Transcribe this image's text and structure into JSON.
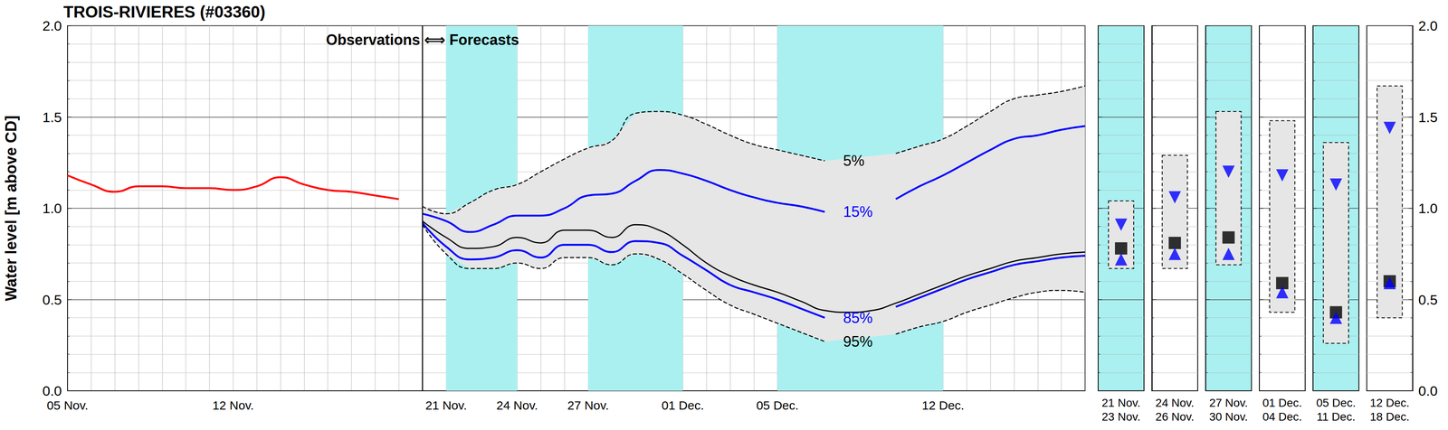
{
  "chart_data": {
    "type": "line",
    "title": "TROIS-RIVIERES (#03360)",
    "y_label": "Water level [m above CD]",
    "annotation": "Observations ⟺ Forecasts",
    "categories": [
      "05 Nov.",
      null,
      null,
      null,
      null,
      null,
      null,
      "12 Nov.",
      null,
      null,
      null,
      null,
      null,
      null,
      null,
      null,
      "21 Nov.",
      null,
      null,
      "24 Nov.",
      null,
      null,
      "27 Nov.",
      null,
      null,
      null,
      "01 Dec.",
      null,
      null,
      null,
      "05 Dec.",
      null,
      null,
      null,
      null,
      null,
      null,
      "12 Dec.",
      null,
      null,
      null,
      null,
      null,
      null
    ],
    "ylim": [
      0,
      2
    ],
    "yticks": [
      {
        "value": 0,
        "label": "0.0"
      },
      0.5,
      {
        "value": 1,
        "label": "1.0"
      },
      1.5,
      {
        "value": 2,
        "label": "2.0"
      }
    ],
    "grid": true,
    "shaded": {
      "color": "#aaf0f0",
      "ranges": [
        [
          "21 Nov.",
          "24 Nov."
        ],
        [
          "27 Nov.",
          "01 Dec."
        ],
        [
          "05 Dec.",
          "12 Dec."
        ]
      ]
    },
    "series": [
      {
        "color": "#ff0000",
        "line_style": "solid",
        "values": [
          1.18,
          1.13,
          1.09,
          1.12,
          1.12,
          1.11,
          1.11,
          1.1,
          1.12,
          1.17,
          1.13,
          1.1,
          1.09,
          1.07,
          1.05,
          null,
          null,
          null,
          null,
          null,
          null,
          null,
          null,
          null,
          null,
          null,
          null,
          null,
          null,
          null,
          null,
          null,
          null,
          null,
          null,
          null,
          null,
          null,
          null,
          null,
          null,
          null,
          null,
          null
        ]
      },
      {
        "name": "5%",
        "color": "#000000",
        "line_style": "dashed",
        "values": [
          null,
          null,
          null,
          null,
          null,
          null,
          null,
          null,
          null,
          null,
          null,
          null,
          null,
          null,
          null,
          1.01,
          0.97,
          1.03,
          1.1,
          1.13,
          1.2,
          1.27,
          1.33,
          1.37,
          1.52,
          1.53,
          1.51,
          1.46,
          1.4,
          1.35,
          1.32,
          1.29,
          1.26,
          null,
          null,
          1.3,
          1.34,
          1.38,
          1.45,
          1.53,
          1.6,
          1.62,
          1.64,
          1.67
        ]
      },
      {
        "name": "15%",
        "color": "#0000ff",
        "line_style": "solid",
        "values": [
          null,
          null,
          null,
          null,
          null,
          null,
          null,
          null,
          null,
          null,
          null,
          null,
          null,
          null,
          null,
          0.97,
          0.93,
          0.87,
          0.91,
          0.96,
          0.96,
          1.0,
          1.07,
          1.08,
          1.15,
          1.21,
          1.19,
          1.15,
          1.1,
          1.06,
          1.03,
          1.01,
          0.98,
          null,
          null,
          1.05,
          1.12,
          1.18,
          1.25,
          1.32,
          1.38,
          1.4,
          1.43,
          1.45
        ]
      },
      {
        "color": "#000000",
        "line_style": "solid",
        "values": [
          null,
          null,
          null,
          null,
          null,
          null,
          null,
          null,
          null,
          null,
          null,
          null,
          null,
          null,
          null,
          0.93,
          0.84,
          0.78,
          0.79,
          0.84,
          0.81,
          0.88,
          0.88,
          0.84,
          0.91,
          0.88,
          0.8,
          0.7,
          0.63,
          0.58,
          0.54,
          0.49,
          0.44,
          0.43,
          0.44,
          0.48,
          0.53,
          0.58,
          0.63,
          0.67,
          0.71,
          0.73,
          0.75,
          0.76
        ]
      },
      {
        "name": "85%",
        "color": "#0000ff",
        "line_style": "solid",
        "values": [
          null,
          null,
          null,
          null,
          null,
          null,
          null,
          null,
          null,
          null,
          null,
          null,
          null,
          null,
          null,
          0.92,
          0.79,
          0.72,
          0.73,
          0.77,
          0.73,
          0.8,
          0.8,
          0.76,
          0.82,
          0.81,
          0.74,
          0.66,
          0.58,
          0.54,
          0.5,
          0.45,
          0.4,
          null,
          null,
          0.46,
          0.51,
          0.56,
          0.61,
          0.65,
          0.69,
          0.71,
          0.73,
          0.74
        ]
      },
      {
        "name": "95%",
        "color": "#000000",
        "line_style": "dashed",
        "values": [
          null,
          null,
          null,
          null,
          null,
          null,
          null,
          null,
          null,
          null,
          null,
          null,
          null,
          null,
          null,
          0.91,
          0.75,
          0.67,
          0.67,
          0.7,
          0.67,
          0.73,
          0.73,
          0.69,
          0.75,
          0.72,
          0.64,
          0.55,
          0.47,
          0.42,
          0.37,
          0.32,
          0.27,
          null,
          null,
          0.31,
          0.35,
          0.38,
          0.43,
          0.47,
          0.51,
          0.54,
          0.55,
          0.54
        ]
      }
    ],
    "panel_markers": [
      {
        "marker": "triangle-down",
        "color": "#0000ff"
      },
      {
        "marker": "square",
        "color": "#000000"
      },
      {
        "marker": "triangle-up",
        "color": "#0000ff"
      }
    ],
    "panels": [
      {
        "label": [
          "21 Nov.",
          "23 Nov."
        ],
        "color": "#aaf0f0",
        "range": [
          0.67,
          1.04
        ],
        "markers": [
          0.91,
          0.78,
          0.72
        ]
      },
      {
        "label": [
          "24 Nov.",
          "26 Nov."
        ],
        "color": "#ffffff",
        "range": [
          0.67,
          1.29
        ],
        "markers": [
          1.06,
          0.81,
          0.75
        ]
      },
      {
        "label": [
          "27 Nov.",
          "30 Nov."
        ],
        "color": "#aaf0f0",
        "range": [
          0.69,
          1.53
        ],
        "markers": [
          1.2,
          0.84,
          0.75
        ]
      },
      {
        "label": [
          "01 Dec.",
          "04 Dec."
        ],
        "color": "#ffffff",
        "range": [
          0.43,
          1.48
        ],
        "markers": [
          1.18,
          0.59,
          0.54
        ]
      },
      {
        "label": [
          "05 Dec.",
          "11 Dec."
        ],
        "color": "#aaf0f0",
        "range": [
          0.26,
          1.36
        ],
        "markers": [
          1.13,
          0.43,
          0.4
        ]
      },
      {
        "label": [
          "12 Dec.",
          "18 Dec."
        ],
        "color": "#ffffff",
        "range": [
          0.4,
          1.67
        ],
        "markers": [
          1.44,
          0.6,
          0.59
        ]
      }
    ]
  }
}
